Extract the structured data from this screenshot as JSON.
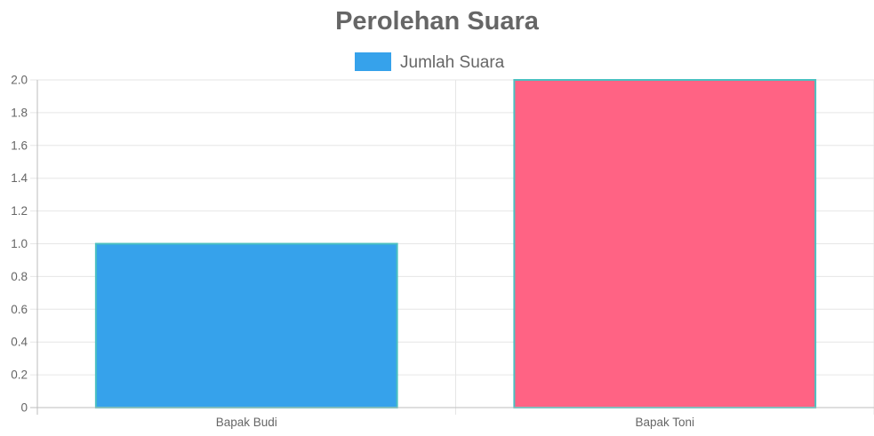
{
  "chart_data": {
    "type": "bar",
    "title": "Perolehan Suara",
    "categories": [
      "Bapak Budi",
      "Bapak Toni"
    ],
    "series": [
      {
        "name": "Jumlah Suara",
        "values": [
          1,
          2
        ],
        "colors": [
          "#36a2eb",
          "#ff6384"
        ],
        "border_color": "#4bc0c0",
        "legend_color": "#36a2eb"
      }
    ],
    "xlabel": "",
    "ylabel": "",
    "ylim": [
      0,
      2
    ],
    "y_ticks": [
      "0",
      "0.2",
      "0.4",
      "0.6",
      "0.8",
      "1.0",
      "1.2",
      "1.4",
      "1.6",
      "1.8",
      "2.0"
    ],
    "grid": true,
    "legend_position": "top"
  }
}
